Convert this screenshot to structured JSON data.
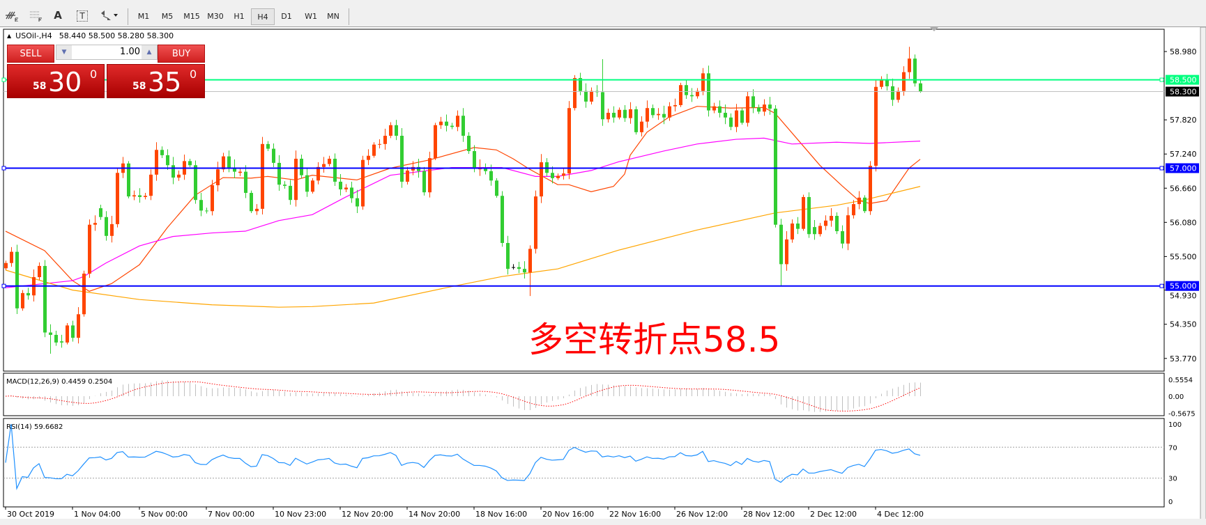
{
  "toolbar": {
    "icons": [
      "elliott-wave-icon",
      "fibonacci-grid-icon",
      "text-icon",
      "text-label-icon",
      "arrows-icon"
    ],
    "text_icon_label": "A",
    "text_label_icon_label": "T",
    "timeframes": [
      "M1",
      "M5",
      "M15",
      "M30",
      "H1",
      "H4",
      "D1",
      "W1",
      "MN"
    ],
    "selected_timeframe": "H4"
  },
  "chart_header": {
    "symbol": "USOil-,H4",
    "ohlc": "58.440 58.500 58.280 58.300"
  },
  "trade_panel": {
    "sell_label": "SELL",
    "buy_label": "BUY",
    "lot": "1.00",
    "sell_price_small": "58",
    "sell_price_big": "30",
    "sell_price_sup": "0",
    "buy_price_small": "58",
    "buy_price_big": "35",
    "buy_price_sup": "0"
  },
  "annotation": "多空转折点58.5",
  "colors": {
    "bull": "#ff4500",
    "bear": "#32cd32",
    "ma_fast": "#ff4500",
    "ma_mid": "#ff00ff",
    "ma_slow": "#ffa500",
    "level_green": "#00ff7f",
    "level_blue": "#0000ff",
    "rsi": "#1e90ff",
    "macd_signal": "#ff0000",
    "macd_hist": "#c0c0c0"
  },
  "chart_data": {
    "type": "candlestick",
    "price_range": [
      53.48,
      59.38
    ],
    "price_ticks": [
      "58.980",
      "57.820",
      "57.240",
      "56.660",
      "56.080",
      "55.500",
      "54.930",
      "54.350",
      "53.770"
    ],
    "close": [
      55.39,
      55.58,
      54.62,
      54.88,
      54.84,
      55.15,
      55.34,
      54.21,
      54.17,
      54.04,
      54.04,
      54.33,
      54.12,
      54.52,
      55.21,
      56.04,
      56.07,
      56.17,
      55.85,
      56.05,
      56.92,
      57.08,
      56.52,
      56.54,
      56.51,
      56.53,
      56.89,
      57.31,
      57.22,
      57.05,
      56.84,
      56.89,
      57.12,
      57.05,
      56.46,
      56.28,
      56.27,
      56.71,
      56.98,
      57.2,
      57.01,
      56.94,
      56.94,
      56.58,
      56.27,
      56.31,
      57.41,
      57.33,
      57.09,
      56.72,
      56.7,
      56.46,
      57.16,
      56.88,
      56.6,
      56.79,
      57.02,
      57.07,
      57.16,
      56.77,
      56.64,
      56.67,
      56.49,
      56.35,
      57.14,
      57.21,
      57.4,
      57.41,
      57.55,
      57.73,
      57.55,
      56.77,
      56.96,
      57.02,
      56.95,
      56.59,
      57.17,
      57.73,
      57.79,
      57.72,
      57.7,
      57.89,
      57.55,
      57.29,
      57.01,
      57.01,
      56.95,
      56.79,
      56.53,
      55.73,
      55.29,
      55.32,
      55.29,
      55.23,
      55.63,
      56.52,
      57.1,
      56.92,
      56.83,
      56.87,
      56.91,
      58.02,
      58.53,
      58.31,
      58.13,
      58.31,
      58.29,
      57.83,
      57.94,
      57.86,
      57.99,
      57.85,
      58.0,
      57.61,
      57.79,
      58.02,
      57.9,
      57.92,
      57.86,
      58.05,
      58.07,
      58.41,
      58.24,
      58.22,
      58.31,
      58.61,
      57.98,
      58.05,
      57.94,
      57.86,
      57.7,
      57.98,
      57.77,
      58.22,
      58.03,
      57.96,
      58.08,
      58.01,
      56.04,
      55.37,
      55.79,
      56.06,
      55.97,
      56.51,
      55.88,
      55.88,
      56.02,
      56.11,
      56.19,
      55.93,
      55.72,
      56.2,
      56.39,
      56.5,
      56.27,
      57.04,
      58.38,
      58.51,
      58.39,
      58.16,
      58.31,
      58.63,
      58.86,
      58.44,
      58.3
    ],
    "open_overrides": {
      "0": 55.3,
      "10": 54.06,
      "17": 56.32,
      "42": 56.92,
      "85": 56.98,
      "91": 55.32,
      "145": 56.0,
      "164": 58.44
    },
    "high_overrides": {
      "162": 59.06,
      "107": 58.85,
      "164": 58.5
    },
    "low_overrides": {
      "94": 54.83,
      "139": 55.0,
      "164": 58.28,
      "8": 53.85
    },
    "x_labels": [
      {
        "bar": 0,
        "label": "30 Oct 2019"
      },
      {
        "bar": 12,
        "label": "1 Nov 04:00"
      },
      {
        "bar": 24,
        "label": "5 Nov 00:00"
      },
      {
        "bar": 36,
        "label": "7 Nov 00:00"
      },
      {
        "bar": 48,
        "label": "10 Nov 23:00"
      },
      {
        "bar": 60,
        "label": "12 Nov 20:00"
      },
      {
        "bar": 72,
        "label": "14 Nov 20:00"
      },
      {
        "bar": 84,
        "label": "18 Nov 16:00"
      },
      {
        "bar": 96,
        "label": "20 Nov 16:00"
      },
      {
        "bar": 108,
        "label": "22 Nov 16:00"
      },
      {
        "bar": 120,
        "label": "26 Nov 12:00"
      },
      {
        "bar": 132,
        "label": "28 Nov 12:00"
      },
      {
        "bar": 144,
        "label": "2 Dec 12:00"
      },
      {
        "bar": 156,
        "label": "4 Dec 12:00"
      }
    ],
    "moving_averages": [
      {
        "role": "fast",
        "points": [
          [
            0,
            55.93
          ],
          [
            7,
            55.6
          ],
          [
            12,
            55.09
          ],
          [
            15,
            54.91
          ],
          [
            19,
            55.04
          ],
          [
            24,
            55.36
          ],
          [
            29,
            55.99
          ],
          [
            34,
            56.54
          ],
          [
            39,
            56.84
          ],
          [
            44,
            56.83
          ],
          [
            47,
            56.86
          ],
          [
            52,
            56.8
          ],
          [
            55,
            56.88
          ],
          [
            63,
            56.8
          ],
          [
            69,
            57.0
          ],
          [
            76,
            57.14
          ],
          [
            84,
            57.35
          ],
          [
            88,
            57.31
          ],
          [
            91,
            57.16
          ],
          [
            94,
            56.98
          ],
          [
            99,
            56.72
          ],
          [
            101,
            56.72
          ],
          [
            105,
            56.6
          ],
          [
            109,
            56.69
          ],
          [
            111,
            56.9
          ],
          [
            112,
            57.22
          ],
          [
            115,
            57.61
          ],
          [
            119,
            57.87
          ],
          [
            124,
            58.05
          ],
          [
            130,
            58.02
          ],
          [
            136,
            58.03
          ],
          [
            138,
            57.93
          ],
          [
            142,
            57.49
          ],
          [
            146,
            57.05
          ],
          [
            150,
            56.7
          ],
          [
            153,
            56.45
          ],
          [
            155,
            56.4
          ],
          [
            158,
            56.45
          ],
          [
            162,
            57.0
          ],
          [
            164,
            57.15
          ]
        ]
      },
      {
        "role": "mid",
        "points": [
          [
            0,
            54.97
          ],
          [
            12,
            55.09
          ],
          [
            14,
            55.16
          ],
          [
            18,
            55.39
          ],
          [
            24,
            55.68
          ],
          [
            30,
            55.84
          ],
          [
            37,
            55.9
          ],
          [
            43,
            55.93
          ],
          [
            49,
            56.11
          ],
          [
            55,
            56.21
          ],
          [
            61,
            56.51
          ],
          [
            69,
            56.88
          ],
          [
            80,
            57.01
          ],
          [
            89,
            57.01
          ],
          [
            95,
            56.86
          ],
          [
            99,
            56.86
          ],
          [
            105,
            56.96
          ],
          [
            110,
            57.11
          ],
          [
            118,
            57.29
          ],
          [
            124,
            57.41
          ],
          [
            131,
            57.49
          ],
          [
            136,
            57.51
          ],
          [
            141,
            57.41
          ],
          [
            149,
            57.44
          ],
          [
            155,
            57.42
          ],
          [
            164,
            57.46
          ]
        ]
      },
      {
        "role": "slow",
        "points": [
          [
            0,
            55.27
          ],
          [
            12,
            54.93
          ],
          [
            24,
            54.77
          ],
          [
            37,
            54.68
          ],
          [
            49,
            54.64
          ],
          [
            55,
            54.65
          ],
          [
            66,
            54.71
          ],
          [
            80,
            54.99
          ],
          [
            89,
            55.16
          ],
          [
            99,
            55.29
          ],
          [
            110,
            55.61
          ],
          [
            124,
            55.95
          ],
          [
            138,
            56.24
          ],
          [
            149,
            56.37
          ],
          [
            154,
            56.46
          ],
          [
            164,
            56.69
          ]
        ]
      }
    ],
    "levels": [
      {
        "price": 58.5,
        "label": "58.500",
        "color": "#00ff7f"
      },
      {
        "price": 57.0,
        "label": "57.000",
        "color": "#0000ff"
      },
      {
        "price": 55.0,
        "label": "55.000",
        "color": "#0000ff"
      }
    ],
    "last_price": {
      "price": 58.3,
      "label": "58.300"
    },
    "macd": {
      "title": "MACD(12,26,9) 0.4459 0.2504",
      "ticks": [
        "0.5554",
        "0.00",
        "-0.5675"
      ],
      "params": [
        12,
        26,
        9
      ]
    },
    "rsi": {
      "title": "RSI(14) 59.6682",
      "ticks": [
        "100",
        "70",
        "30",
        "0"
      ],
      "period": 14,
      "levels": [
        70,
        30
      ]
    }
  }
}
